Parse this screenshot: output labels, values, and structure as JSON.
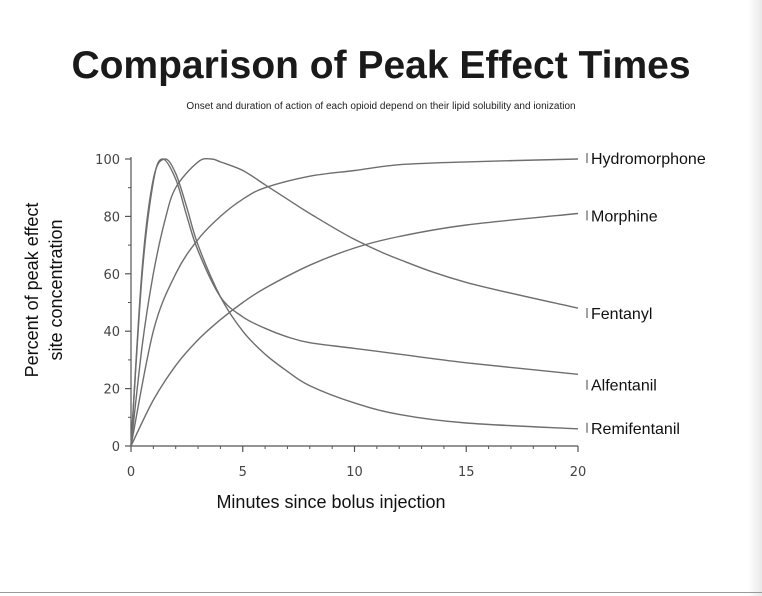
{
  "page": {
    "title": "Comparison of Peak Effect Times",
    "subtitle": "Onset and duration of action of each opioid depend on their lipid solubility and ionization"
  },
  "chart_data": {
    "type": "line",
    "xlabel": "Minutes since bolus injection",
    "ylabel_line1": "Percent of peak effect",
    "ylabel_line2": "site concentration",
    "xlim": [
      0,
      20
    ],
    "ylim": [
      0,
      100
    ],
    "xticks": [
      0,
      5,
      10,
      15,
      20
    ],
    "yticks": [
      0,
      20,
      40,
      60,
      80,
      100
    ],
    "grid": false,
    "line_color": "#6e6e6e",
    "series": [
      {
        "name": "Hydromorphone",
        "x": [
          0,
          1,
          2,
          3,
          4,
          5,
          6,
          8,
          10,
          12,
          15,
          20
        ],
        "y": [
          0,
          40,
          60,
          72,
          80,
          86,
          90,
          94,
          96,
          98,
          99,
          100
        ]
      },
      {
        "name": "Morphine",
        "x": [
          0,
          1,
          2,
          3,
          4,
          5,
          6,
          8,
          10,
          12,
          15,
          20
        ],
        "y": [
          0,
          16,
          28,
          37,
          44,
          50,
          55,
          63,
          69,
          73,
          77,
          81
        ]
      },
      {
        "name": "Fentanyl",
        "x": [
          0,
          0.5,
          1,
          1.5,
          2,
          3,
          3.6,
          4,
          5,
          6,
          7,
          8,
          10,
          12,
          15,
          20
        ],
        "y": [
          0,
          35,
          60,
          78,
          90,
          99,
          100,
          99,
          96,
          91,
          86,
          81,
          72,
          65,
          57,
          48
        ]
      },
      {
        "name": "Alfentanil",
        "x": [
          0,
          0.5,
          1,
          1.4,
          2,
          2.5,
          3,
          4,
          5,
          6,
          7,
          8,
          10,
          12,
          15,
          20
        ],
        "y": [
          0,
          60,
          92,
          100,
          93,
          80,
          68,
          52,
          45,
          41,
          38,
          36,
          34,
          32,
          29,
          25
        ]
      },
      {
        "name": "Remifentanil",
        "x": [
          0,
          0.5,
          1,
          1.5,
          2,
          2.5,
          3,
          4,
          5,
          6,
          7,
          8,
          10,
          12,
          15,
          20
        ],
        "y": [
          0,
          62,
          93,
          100,
          95,
          83,
          70,
          52,
          40,
          32,
          26,
          21,
          15,
          11,
          8,
          6
        ]
      }
    ],
    "series_labels": [
      {
        "text": "Hydromorphone",
        "y": 100
      },
      {
        "text": "Morphine",
        "y": 80
      },
      {
        "text": "Fentanyl",
        "y": 46
      },
      {
        "text": "Alfentanil",
        "y": 21
      },
      {
        "text": "Remifentanil",
        "y": 6
      }
    ]
  }
}
